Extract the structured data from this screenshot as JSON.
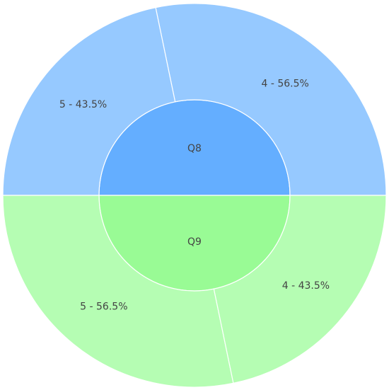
{
  "chart_data": {
    "type": "sunburst",
    "nodes": [
      {
        "label": "Q8",
        "value": 100,
        "color": "#64aeff",
        "children": [
          {
            "label": "4 - 56.5%",
            "value": 56.5,
            "color": "#96c9ff"
          },
          {
            "label": "5 - 43.5%",
            "value": 43.5,
            "color": "#96c9ff"
          }
        ]
      },
      {
        "label": "Q9",
        "value": 100,
        "color": "#99fb95",
        "children": [
          {
            "label": "5 - 56.5%",
            "value": 56.5,
            "color": "#b5fdb3"
          },
          {
            "label": "4 - 43.5%",
            "value": 43.5,
            "color": "#b5fdb3"
          }
        ]
      }
    ]
  }
}
